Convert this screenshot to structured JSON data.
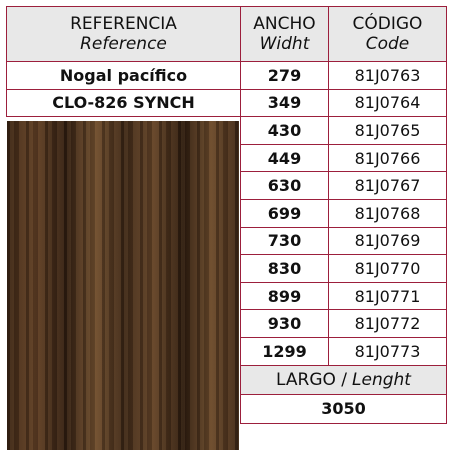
{
  "header": {
    "reference": {
      "label": "REFERENCIA",
      "sub": "Reference"
    },
    "width": {
      "label": "ANCHO",
      "sub": "Widht"
    },
    "code": {
      "label": "CÓDIGO",
      "sub": "Code"
    }
  },
  "reference_name": [
    "Nogal pacífico",
    "CLO-826 SYNCH"
  ],
  "rows": [
    [
      279,
      "81J0763"
    ],
    [
      349,
      "81J0764"
    ],
    [
      430,
      "81J0765"
    ],
    [
      449,
      "81J0766"
    ],
    [
      630,
      "81J0767"
    ],
    [
      699,
      "81J0768"
    ],
    [
      730,
      "81J0769"
    ],
    [
      830,
      "81J0770"
    ],
    [
      899,
      "81J0771"
    ],
    [
      930,
      "81J0772"
    ],
    [
      1299,
      "81J0773"
    ]
  ],
  "length": {
    "label": "LARGO /",
    "sub": "Lenght",
    "value": 3050
  }
}
